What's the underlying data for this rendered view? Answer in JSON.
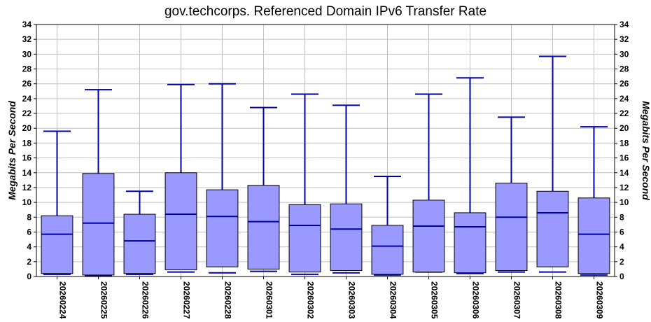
{
  "chart_data": {
    "type": "boxplot",
    "title": "gov.techcorps. Referenced Domain IPv6 Transfer Rate",
    "ylabel_left": "Megabits Per Second",
    "ylabel_right": "Megabits Per Second",
    "ylim": [
      0,
      34
    ],
    "yticks": [
      0,
      2,
      4,
      6,
      8,
      10,
      12,
      14,
      16,
      18,
      20,
      22,
      24,
      26,
      28,
      30,
      32,
      34
    ],
    "grid": true,
    "colors": {
      "box_fill": "#9999ff",
      "whisker": "#0000aa",
      "median": "#0000aa",
      "box_edge": "#000000",
      "grid": "#c0c0c0"
    },
    "categories": [
      "20260224",
      "20260225",
      "20260226",
      "20260227",
      "20260228",
      "20260301",
      "20260302",
      "20260303",
      "20260304",
      "20260305",
      "20260306",
      "20260307",
      "20260308",
      "20260309"
    ],
    "boxes": [
      {
        "min": 0.3,
        "q1": 0.4,
        "median": 5.7,
        "q3": 8.2,
        "max": 19.6
      },
      {
        "min": 0.1,
        "q1": 0.2,
        "median": 7.2,
        "q3": 13.9,
        "max": 25.2
      },
      {
        "min": 0.3,
        "q1": 0.4,
        "median": 4.8,
        "q3": 8.4,
        "max": 11.5
      },
      {
        "min": 0.6,
        "q1": 0.9,
        "median": 8.4,
        "q3": 14.0,
        "max": 25.9
      },
      {
        "min": 0.5,
        "q1": 1.3,
        "median": 8.1,
        "q3": 11.7,
        "max": 26.0
      },
      {
        "min": 0.7,
        "q1": 1.0,
        "median": 7.4,
        "q3": 12.3,
        "max": 22.8
      },
      {
        "min": 0.3,
        "q1": 0.6,
        "median": 6.9,
        "q3": 9.7,
        "max": 24.6
      },
      {
        "min": 0.5,
        "q1": 0.8,
        "median": 6.4,
        "q3": 9.8,
        "max": 23.1
      },
      {
        "min": 0.2,
        "q1": 0.3,
        "median": 4.1,
        "q3": 6.9,
        "max": 13.5
      },
      {
        "min": 0.6,
        "q1": 0.6,
        "median": 6.8,
        "q3": 10.3,
        "max": 24.6
      },
      {
        "min": 0.4,
        "q1": 0.5,
        "median": 6.7,
        "q3": 8.6,
        "max": 26.8
      },
      {
        "min": 0.6,
        "q1": 0.8,
        "median": 8.0,
        "q3": 12.6,
        "max": 21.5
      },
      {
        "min": 0.6,
        "q1": 1.3,
        "median": 8.6,
        "q3": 11.5,
        "max": 29.7
      },
      {
        "min": 0.2,
        "q1": 0.4,
        "median": 5.7,
        "q3": 10.6,
        "max": 20.2
      }
    ]
  }
}
